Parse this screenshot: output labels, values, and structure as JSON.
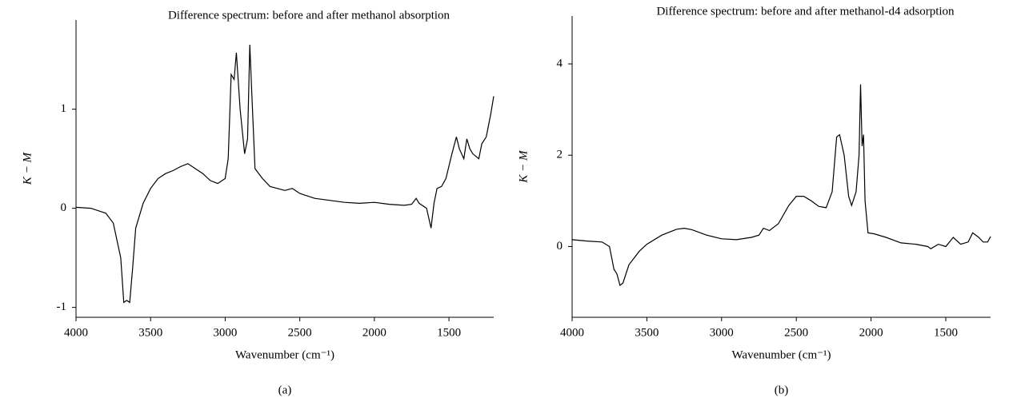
{
  "chart_data": [
    {
      "type": "line",
      "title": "Difference spectrum: before and after methanol absorption",
      "xlabel": "Wavenumber (cm⁻¹)",
      "ylabel": "K − M",
      "caption": "(a)",
      "color": "#000000",
      "xlim": [
        4000,
        1200
      ],
      "xticks": [
        4000,
        3500,
        3000,
        2500,
        2000,
        1500
      ],
      "ylim": [
        -1.1,
        1.9
      ],
      "yticks": [
        -1,
        0,
        1
      ],
      "x": [
        4000,
        3900,
        3800,
        3750,
        3700,
        3680,
        3660,
        3640,
        3620,
        3600,
        3550,
        3500,
        3450,
        3400,
        3350,
        3300,
        3250,
        3200,
        3150,
        3100,
        3050,
        3000,
        2980,
        2960,
        2940,
        2925,
        2900,
        2870,
        2850,
        2835,
        2820,
        2800,
        2750,
        2700,
        2600,
        2550,
        2500,
        2400,
        2300,
        2200,
        2100,
        2000,
        1900,
        1800,
        1750,
        1720,
        1700,
        1650,
        1620,
        1600,
        1580,
        1550,
        1520,
        1480,
        1450,
        1430,
        1400,
        1380,
        1360,
        1340,
        1300,
        1280,
        1250,
        1220,
        1200
      ],
      "values": [
        0.01,
        0,
        -0.05,
        -0.15,
        -0.5,
        -0.95,
        -0.93,
        -0.95,
        -0.6,
        -0.2,
        0.05,
        0.2,
        0.3,
        0.35,
        0.38,
        0.42,
        0.45,
        0.4,
        0.35,
        0.28,
        0.25,
        0.3,
        0.5,
        1.35,
        1.3,
        1.57,
        1.0,
        0.55,
        0.7,
        1.65,
        1.1,
        0.4,
        0.3,
        0.22,
        0.18,
        0.2,
        0.15,
        0.1,
        0.08,
        0.06,
        0.05,
        0.06,
        0.04,
        0.03,
        0.04,
        0.1,
        0.05,
        0.0,
        -0.2,
        0.05,
        0.2,
        0.22,
        0.3,
        0.55,
        0.72,
        0.6,
        0.5,
        0.7,
        0.6,
        0.55,
        0.5,
        0.65,
        0.72,
        0.95,
        1.13
      ]
    },
    {
      "type": "line",
      "title": "Difference spectrum: before and after methanol-d4 adsorption",
      "xlabel": "Wavenumber (cm⁻¹)",
      "ylabel": "K − M",
      "caption": "(b)",
      "color": "#000000",
      "xlim": [
        4000,
        1200
      ],
      "xticks": [
        4000,
        3500,
        3000,
        2500,
        2000,
        1500
      ],
      "ylim": [
        -1.55,
        5.05
      ],
      "yticks": [
        0,
        2,
        4
      ],
      "x": [
        4000,
        3900,
        3800,
        3750,
        3720,
        3700,
        3680,
        3660,
        3620,
        3550,
        3500,
        3400,
        3300,
        3250,
        3200,
        3100,
        3000,
        2900,
        2800,
        2750,
        2720,
        2680,
        2620,
        2550,
        2500,
        2450,
        2400,
        2350,
        2300,
        2260,
        2230,
        2210,
        2180,
        2150,
        2130,
        2100,
        2080,
        2070,
        2060,
        2050,
        2040,
        2020,
        1980,
        1900,
        1800,
        1700,
        1620,
        1600,
        1550,
        1500,
        1450,
        1400,
        1350,
        1320,
        1280,
        1250,
        1220,
        1200
      ],
      "values": [
        0.15,
        0.12,
        0.1,
        0.0,
        -0.5,
        -0.6,
        -0.85,
        -0.8,
        -0.4,
        -0.1,
        0.05,
        0.25,
        0.38,
        0.4,
        0.37,
        0.25,
        0.17,
        0.15,
        0.2,
        0.25,
        0.4,
        0.35,
        0.5,
        0.9,
        1.1,
        1.1,
        1.0,
        0.88,
        0.85,
        1.2,
        2.4,
        2.45,
        2.0,
        1.1,
        0.9,
        1.2,
        2.0,
        3.55,
        2.2,
        2.45,
        1.0,
        0.3,
        0.28,
        0.2,
        0.08,
        0.05,
        0.0,
        -0.05,
        0.05,
        0.0,
        0.2,
        0.05,
        0.1,
        0.3,
        0.2,
        0.1,
        0.1,
        0.22
      ]
    }
  ]
}
